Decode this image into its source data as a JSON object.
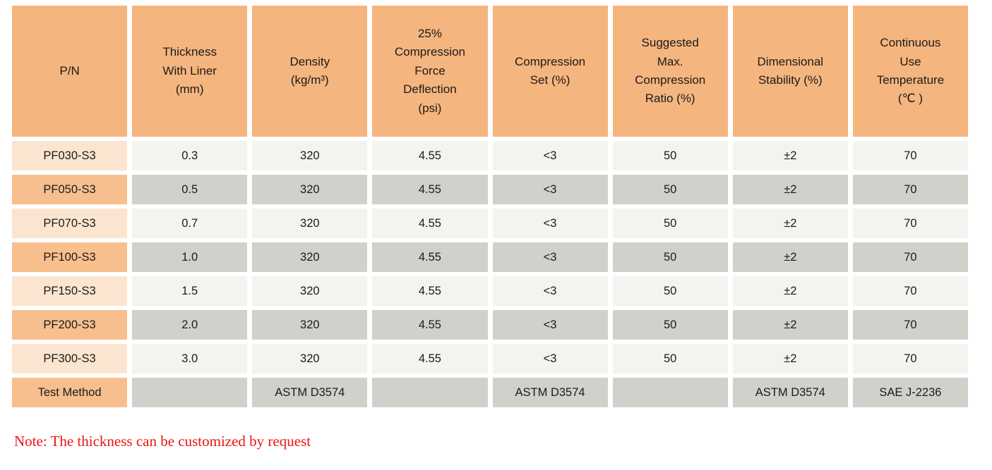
{
  "colors": {
    "header_bg": "#f5b57e",
    "pn_col_light_bg": "#fce5d0",
    "pn_col_dark_bg": "#f7bf8d",
    "cell_light_bg": "#f3f3ef",
    "cell_dark_bg": "#d1d1cb",
    "note_text": "#ee1411",
    "body_text": "#1b1b1b"
  },
  "table": {
    "headers": [
      "P/N",
      "Thickness\nWith Liner\n(mm)",
      "Density\n(kg/m³)",
      "25%\nCompression\nForce\nDeflection\n(psi)",
      "Compression\nSet (%)",
      "Suggested\nMax.\nCompression\nRatio (%)",
      "Dimensional\nStability (%)",
      "Continuous\nUse\nTemperature\n(℃ )"
    ],
    "rows": [
      [
        "PF030-S3",
        "0.3",
        "320",
        "4.55",
        "<3",
        "50",
        "±2",
        "70"
      ],
      [
        "PF050-S3",
        "0.5",
        "320",
        "4.55",
        "<3",
        "50",
        "±2",
        "70"
      ],
      [
        "PF070-S3",
        "0.7",
        "320",
        "4.55",
        "<3",
        "50",
        "±2",
        "70"
      ],
      [
        "PF100-S3",
        "1.0",
        "320",
        "4.55",
        "<3",
        "50",
        "±2",
        "70"
      ],
      [
        "PF150-S3",
        "1.5",
        "320",
        "4.55",
        "<3",
        "50",
        "±2",
        "70"
      ],
      [
        "PF200-S3",
        "2.0",
        "320",
        "4.55",
        "<3",
        "50",
        "±2",
        "70"
      ],
      [
        "PF300-S3",
        "3.0",
        "320",
        "4.55",
        "<3",
        "50",
        "±2",
        "70"
      ]
    ],
    "test_row": [
      "Test Method",
      "",
      "ASTM D3574",
      "",
      "ASTM D3574",
      "",
      "ASTM D3574",
      "SAE J-2236"
    ]
  },
  "note": "Note: The thickness can be customized by request"
}
